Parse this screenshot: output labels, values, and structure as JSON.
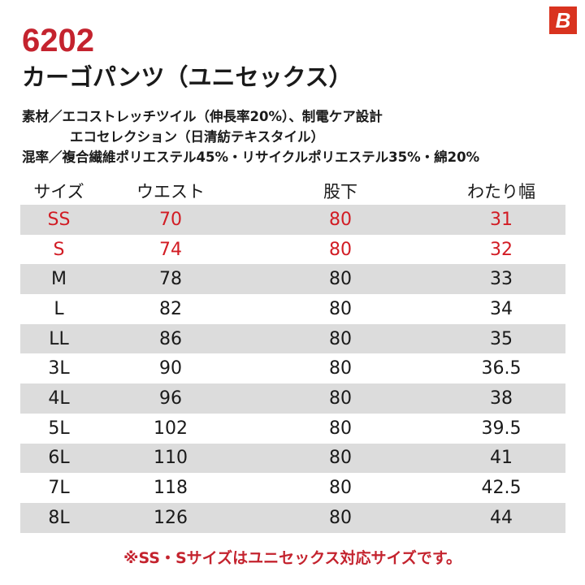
{
  "header": {
    "model_number": "6202",
    "product_name": "カーゴパンツ（ユニセックス）",
    "brand_logo": {
      "icon": "burtle-b-logo-icon",
      "glyph": "B",
      "color": "#d9331f"
    }
  },
  "specs": {
    "material_line1": "素材／エコストレッチツイル（伸長率20%）、制電ケア設計",
    "material_line2": "エコセレクション（日清紡テキスタイル）",
    "blend": "混率／複合繊維ポリエステル45%・リサイクルポリエステル35%・綿20%"
  },
  "size_table": {
    "headers": [
      "サイズ",
      "ウエスト",
      "股下",
      "わたり幅"
    ],
    "rows": [
      {
        "size": "SS",
        "waist": "70",
        "inseam": "80",
        "thigh": "31",
        "highlight": true
      },
      {
        "size": "S",
        "waist": "74",
        "inseam": "80",
        "thigh": "32",
        "highlight": true
      },
      {
        "size": "M",
        "waist": "78",
        "inseam": "80",
        "thigh": "33",
        "highlight": false
      },
      {
        "size": "L",
        "waist": "82",
        "inseam": "80",
        "thigh": "34",
        "highlight": false
      },
      {
        "size": "LL",
        "waist": "86",
        "inseam": "80",
        "thigh": "35",
        "highlight": false
      },
      {
        "size": "3L",
        "waist": "90",
        "inseam": "80",
        "thigh": "36.5",
        "highlight": false
      },
      {
        "size": "4L",
        "waist": "96",
        "inseam": "80",
        "thigh": "38",
        "highlight": false
      },
      {
        "size": "5L",
        "waist": "102",
        "inseam": "80",
        "thigh": "39.5",
        "highlight": false
      },
      {
        "size": "6L",
        "waist": "110",
        "inseam": "80",
        "thigh": "41",
        "highlight": false
      },
      {
        "size": "7L",
        "waist": "118",
        "inseam": "80",
        "thigh": "42.5",
        "highlight": false
      },
      {
        "size": "8L",
        "waist": "126",
        "inseam": "80",
        "thigh": "44",
        "highlight": false
      }
    ]
  },
  "footer_note": "※SS・Sサイズはユニセックス対応サイズです。",
  "colors": {
    "accent_red": "#c4232e",
    "row_gray": "#dcdcdc",
    "text": "#1a1a1a"
  }
}
